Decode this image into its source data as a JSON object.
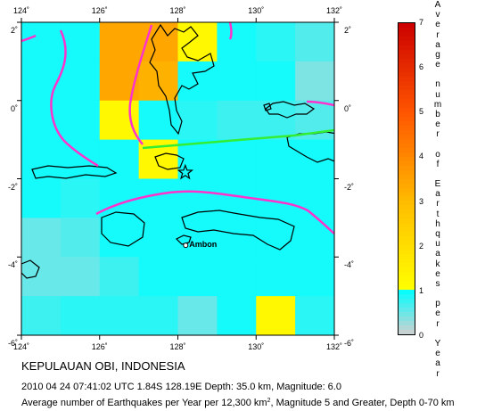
{
  "map": {
    "lon_min": 124,
    "lon_max": 132,
    "lat_min": -6,
    "lat_max": 2,
    "lon_ticks": [
      124,
      126,
      128,
      130,
      132
    ],
    "lat_ticks": [
      2,
      0,
      -2,
      -4,
      -6
    ],
    "lon_tick_labels": [
      "124˚",
      "126˚",
      "128˚",
      "130˚",
      "132˚"
    ],
    "lat_tick_labels_left": [
      "2˚",
      "0˚",
      "-2˚",
      "-4˚",
      "-6˚"
    ],
    "lat_tick_labels_right": [
      "2˚",
      "0˚",
      "-2˚",
      "-4˚",
      "-6˚"
    ],
    "epicenter": {
      "lon": 128.19,
      "lat": -1.84,
      "symbol": "star-icon"
    },
    "city": {
      "name": "Ambon",
      "lon": 128.2,
      "lat": -3.7
    },
    "plate_boundary_color": "#ff33cc",
    "ridge_color": "#33ee33",
    "coast_color": "#000000",
    "grid_cell_degrees": 1
  },
  "chart_data": {
    "type": "heatmap",
    "title": "",
    "x_label": "Longitude",
    "y_label": "Latitude",
    "x_range": [
      124,
      132
    ],
    "y_range": [
      -6,
      2
    ],
    "cell_size": 1,
    "cell_lat_tops": [
      2,
      1,
      0,
      -1,
      -2,
      -3,
      -4,
      -5
    ],
    "cell_lon_lefts": [
      124,
      125,
      126,
      127,
      128,
      129,
      130,
      131
    ],
    "values": [
      [
        0.9,
        0.9,
        3.4,
        3.4,
        1.2,
        0.9,
        0.8,
        0.6
      ],
      [
        0.9,
        0.9,
        3.4,
        3.2,
        0.9,
        0.9,
        0.9,
        0.4
      ],
      [
        0.9,
        0.9,
        1.2,
        0.9,
        0.8,
        0.7,
        0.7,
        0.6
      ],
      [
        0.9,
        0.9,
        0.9,
        1.2,
        0.9,
        0.9,
        0.9,
        0.9
      ],
      [
        0.9,
        0.8,
        0.9,
        0.9,
        0.9,
        0.9,
        0.9,
        0.9
      ],
      [
        0.5,
        0.6,
        0.9,
        0.9,
        0.9,
        0.9,
        0.9,
        0.9
      ],
      [
        0.5,
        0.5,
        0.7,
        0.9,
        0.9,
        0.9,
        0.9,
        0.9
      ],
      [
        0.7,
        0.8,
        0.8,
        0.8,
        0.5,
        0.9,
        1.2,
        0.8
      ]
    ],
    "color_scale": {
      "min": 0,
      "max": 7,
      "ticks": [
        0,
        1,
        2,
        3,
        4,
        5,
        6,
        7
      ],
      "title": "Average number of Earthquakes per Year",
      "stops": [
        {
          "value": 0,
          "color": "#d0d0d0"
        },
        {
          "value": 1,
          "color": "#00ffff"
        },
        {
          "value": 1,
          "color": "#ffff00"
        },
        {
          "value": 3,
          "color": "#ffbb00"
        },
        {
          "value": 5,
          "color": "#ff5500"
        },
        {
          "value": 7,
          "color": "#cc0000"
        }
      ]
    }
  },
  "legend": {
    "title_words": [
      "Average",
      "number",
      "of",
      "Earthquakes",
      "per",
      "Year"
    ],
    "tick_labels": [
      "0",
      "1",
      "2",
      "3",
      "4",
      "5",
      "6",
      "7"
    ]
  },
  "text": {
    "region_title": "KEPULAUAN OBI, INDONESIA",
    "event_line": "2010 04 24 07:41:02 UTC 1.84S 128.19E Depth: 35.0 km, Magnitude: 6.0",
    "caption_before_sup": "Average number of Earthquakes per Year per 12,300 km",
    "caption_sup": "2",
    "caption_after_sup": ", Magnitude 5 and Greater, Depth 0-70 km"
  }
}
